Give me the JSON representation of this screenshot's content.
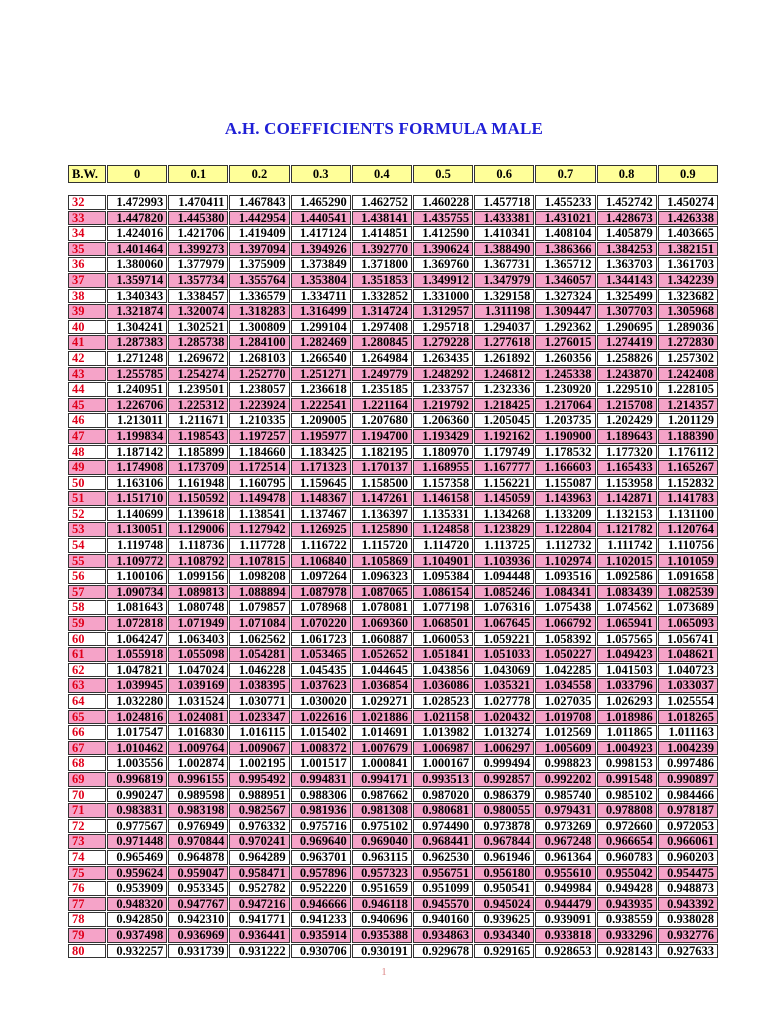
{
  "title": "A.H. COEFFICIENTS FORMULA MALE",
  "columns": [
    "B.W.",
    "0",
    "0.1",
    "0.2",
    "0.3",
    "0.4",
    "0.5",
    "0.6",
    "0.7",
    "0.8",
    "0.9"
  ],
  "colors": {
    "title": "#1f1fd6",
    "header_bg": "#ffff99",
    "row_alt_bg": "#f5a3c8",
    "bw_text": "#e0001b"
  },
  "rows": [
    [
      "32",
      "1.472993",
      "1.470411",
      "1.467843",
      "1.465290",
      "1.462752",
      "1.460228",
      "1.457718",
      "1.455233",
      "1.452742",
      "1.450274"
    ],
    [
      "33",
      "1.447820",
      "1.445380",
      "1.442954",
      "1.440541",
      "1.438141",
      "1.435755",
      "1.433381",
      "1.431021",
      "1.428673",
      "1.426338"
    ],
    [
      "34",
      "1.424016",
      "1.421706",
      "1.419409",
      "1.417124",
      "1.414851",
      "1.412590",
      "1.410341",
      "1.408104",
      "1.405879",
      "1.403665"
    ],
    [
      "35",
      "1.401464",
      "1.399273",
      "1.397094",
      "1.394926",
      "1.392770",
      "1.390624",
      "1.388490",
      "1.386366",
      "1.384253",
      "1.382151"
    ],
    [
      "36",
      "1.380060",
      "1.377979",
      "1.375909",
      "1.373849",
      "1.371800",
      "1.369760",
      "1.367731",
      "1.365712",
      "1.363703",
      "1.361703"
    ],
    [
      "37",
      "1.359714",
      "1.357734",
      "1.355764",
      "1.353804",
      "1.351853",
      "1.349912",
      "1.347979",
      "1.346057",
      "1.344143",
      "1.342239"
    ],
    [
      "38",
      "1.340343",
      "1.338457",
      "1.336579",
      "1.334711",
      "1.332852",
      "1.331000",
      "1.329158",
      "1.327324",
      "1.325499",
      "1.323682"
    ],
    [
      "39",
      "1.321874",
      "1.320074",
      "1.318283",
      "1.316499",
      "1.314724",
      "1.312957",
      "1.311198",
      "1.309447",
      "1.307703",
      "1.305968"
    ],
    [
      "40",
      "1.304241",
      "1.302521",
      "1.300809",
      "1.299104",
      "1.297408",
      "1.295718",
      "1.294037",
      "1.292362",
      "1.290695",
      "1.289036"
    ],
    [
      "41",
      "1.287383",
      "1.285738",
      "1.284100",
      "1.282469",
      "1.280845",
      "1.279228",
      "1.277618",
      "1.276015",
      "1.274419",
      "1.272830"
    ],
    [
      "42",
      "1.271248",
      "1.269672",
      "1.268103",
      "1.266540",
      "1.264984",
      "1.263435",
      "1.261892",
      "1.260356",
      "1.258826",
      "1.257302"
    ],
    [
      "43",
      "1.255785",
      "1.254274",
      "1.252770",
      "1.251271",
      "1.249779",
      "1.248292",
      "1.246812",
      "1.245338",
      "1.243870",
      "1.242408"
    ],
    [
      "44",
      "1.240951",
      "1.239501",
      "1.238057",
      "1.236618",
      "1.235185",
      "1.233757",
      "1.232336",
      "1.230920",
      "1.229510",
      "1.228105"
    ],
    [
      "45",
      "1.226706",
      "1.225312",
      "1.223924",
      "1.222541",
      "1.221164",
      "1.219792",
      "1.218425",
      "1.217064",
      "1.215708",
      "1.214357"
    ],
    [
      "46",
      "1.213011",
      "1.211671",
      "1.210335",
      "1.209005",
      "1.207680",
      "1.206360",
      "1.205045",
      "1.203735",
      "1.202429",
      "1.201129"
    ],
    [
      "47",
      "1.199834",
      "1.198543",
      "1.197257",
      "1.195977",
      "1.194700",
      "1.193429",
      "1.192162",
      "1.190900",
      "1.189643",
      "1.188390"
    ],
    [
      "48",
      "1.187142",
      "1.185899",
      "1.184660",
      "1.183425",
      "1.182195",
      "1.180970",
      "1.179749",
      "1.178532",
      "1.177320",
      "1.176112"
    ],
    [
      "49",
      "1.174908",
      "1.173709",
      "1.172514",
      "1.171323",
      "1.170137",
      "1.168955",
      "1.167777",
      "1.166603",
      "1.165433",
      "1.165267"
    ],
    [
      "50",
      "1.163106",
      "1.161948",
      "1.160795",
      "1.159645",
      "1.158500",
      "1.157358",
      "1.156221",
      "1.155087",
      "1.153958",
      "1.152832"
    ],
    [
      "51",
      "1.151710",
      "1.150592",
      "1.149478",
      "1.148367",
      "1.147261",
      "1.146158",
      "1.145059",
      "1.143963",
      "1.142871",
      "1.141783"
    ],
    [
      "52",
      "1.140699",
      "1.139618",
      "1.138541",
      "1.137467",
      "1.136397",
      "1.135331",
      "1.134268",
      "1.133209",
      "1.132153",
      "1.131100"
    ],
    [
      "53",
      "1.130051",
      "1.129006",
      "1.127942",
      "1.126925",
      "1.125890",
      "1.124858",
      "1.123829",
      "1.122804",
      "1.121782",
      "1.120764"
    ],
    [
      "54",
      "1.119748",
      "1.118736",
      "1.117728",
      "1.116722",
      "1.115720",
      "1.114720",
      "1.113725",
      "1.112732",
      "1.111742",
      "1.110756"
    ],
    [
      "55",
      "1.109772",
      "1.108792",
      "1.107815",
      "1.106840",
      "1.105869",
      "1.104901",
      "1.103936",
      "1.102974",
      "1.102015",
      "1.101059"
    ],
    [
      "56",
      "1.100106",
      "1.099156",
      "1.098208",
      "1.097264",
      "1.096323",
      "1.095384",
      "1.094448",
      "1.093516",
      "1.092586",
      "1.091658"
    ],
    [
      "57",
      "1.090734",
      "1.089813",
      "1.088894",
      "1.087978",
      "1.087065",
      "1.086154",
      "1.085246",
      "1.084341",
      "1.083439",
      "1.082539"
    ],
    [
      "58",
      "1.081643",
      "1.080748",
      "1.079857",
      "1.078968",
      "1.078081",
      "1.077198",
      "1.076316",
      "1.075438",
      "1.074562",
      "1.073689"
    ],
    [
      "59",
      "1.072818",
      "1.071949",
      "1.071084",
      "1.070220",
      "1.069360",
      "1.068501",
      "1.067645",
      "1.066792",
      "1.065941",
      "1.065093"
    ],
    [
      "60",
      "1.064247",
      "1.063403",
      "1.062562",
      "1.061723",
      "1.060887",
      "1.060053",
      "1.059221",
      "1.058392",
      "1.057565",
      "1.056741"
    ],
    [
      "61",
      "1.055918",
      "1.055098",
      "1.054281",
      "1.053465",
      "1.052652",
      "1.051841",
      "1.051033",
      "1.050227",
      "1.049423",
      "1.048621"
    ],
    [
      "62",
      "1.047821",
      "1.047024",
      "1.046228",
      "1.045435",
      "1.044645",
      "1.043856",
      "1.043069",
      "1.042285",
      "1.041503",
      "1.040723"
    ],
    [
      "63",
      "1.039945",
      "1.039169",
      "1.038395",
      "1.037623",
      "1.036854",
      "1.036086",
      "1.035321",
      "1.034558",
      "1.033796",
      "1.033037"
    ],
    [
      "64",
      "1.032280",
      "1.031524",
      "1.030771",
      "1.030020",
      "1.029271",
      "1.028523",
      "1.027778",
      "1.027035",
      "1.026293",
      "1.025554"
    ],
    [
      "65",
      "1.024816",
      "1.024081",
      "1.023347",
      "1.022616",
      "1.021886",
      "1.021158",
      "1.020432",
      "1.019708",
      "1.018986",
      "1.018265"
    ],
    [
      "66",
      "1.017547",
      "1.016830",
      "1.016115",
      "1.015402",
      "1.014691",
      "1.013982",
      "1.013274",
      "1.012569",
      "1.011865",
      "1.011163"
    ],
    [
      "67",
      "1.010462",
      "1.009764",
      "1.009067",
      "1.008372",
      "1.007679",
      "1.006987",
      "1.006297",
      "1.005609",
      "1.004923",
      "1.004239"
    ],
    [
      "68",
      "1.003556",
      "1.002874",
      "1.002195",
      "1.001517",
      "1.000841",
      "1.000167",
      "0.999494",
      "0.998823",
      "0.998153",
      "0.997486"
    ],
    [
      "69",
      "0.996819",
      "0.996155",
      "0.995492",
      "0.994831",
      "0.994171",
      "0.993513",
      "0.992857",
      "0.992202",
      "0.991548",
      "0.990897"
    ],
    [
      "70",
      "0.990247",
      "0.989598",
      "0.988951",
      "0.988306",
      "0.987662",
      "0.987020",
      "0.986379",
      "0.985740",
      "0.985102",
      "0.984466"
    ],
    [
      "71",
      "0.983831",
      "0.983198",
      "0.982567",
      "0.981936",
      "0.981308",
      "0.980681",
      "0.980055",
      "0.979431",
      "0.978808",
      "0.978187"
    ],
    [
      "72",
      "0.977567",
      "0.976949",
      "0.976332",
      "0.975716",
      "0.975102",
      "0.974490",
      "0.973878",
      "0.973269",
      "0.972660",
      "0.972053"
    ],
    [
      "73",
      "0.971448",
      "0.970844",
      "0.970241",
      "0.969640",
      "0.969040",
      "0.968441",
      "0.967844",
      "0.967248",
      "0.966654",
      "0.966061"
    ],
    [
      "74",
      "0.965469",
      "0.964878",
      "0.964289",
      "0.963701",
      "0.963115",
      "0.962530",
      "0.961946",
      "0.961364",
      "0.960783",
      "0.960203"
    ],
    [
      "75",
      "0.959624",
      "0.959047",
      "0.958471",
      "0.957896",
      "0.957323",
      "0.956751",
      "0.956180",
      "0.955610",
      "0.955042",
      "0.954475"
    ],
    [
      "76",
      "0.953909",
      "0.953345",
      "0.952782",
      "0.952220",
      "0.951659",
      "0.951099",
      "0.950541",
      "0.949984",
      "0.949428",
      "0.948873"
    ],
    [
      "77",
      "0.948320",
      "0.947767",
      "0.947216",
      "0.946666",
      "0.946118",
      "0.945570",
      "0.945024",
      "0.944479",
      "0.943935",
      "0.943392"
    ],
    [
      "78",
      "0.942850",
      "0.942310",
      "0.941771",
      "0.941233",
      "0.940696",
      "0.940160",
      "0.939625",
      "0.939091",
      "0.938559",
      "0.938028"
    ],
    [
      "79",
      "0.937498",
      "0.936969",
      "0.936441",
      "0.935914",
      "0.935388",
      "0.934863",
      "0.934340",
      "0.933818",
      "0.933296",
      "0.932776"
    ],
    [
      "80",
      "0.932257",
      "0.931739",
      "0.931222",
      "0.930706",
      "0.930191",
      "0.929678",
      "0.929165",
      "0.928653",
      "0.928143",
      "0.927633"
    ]
  ],
  "page_number": "1"
}
